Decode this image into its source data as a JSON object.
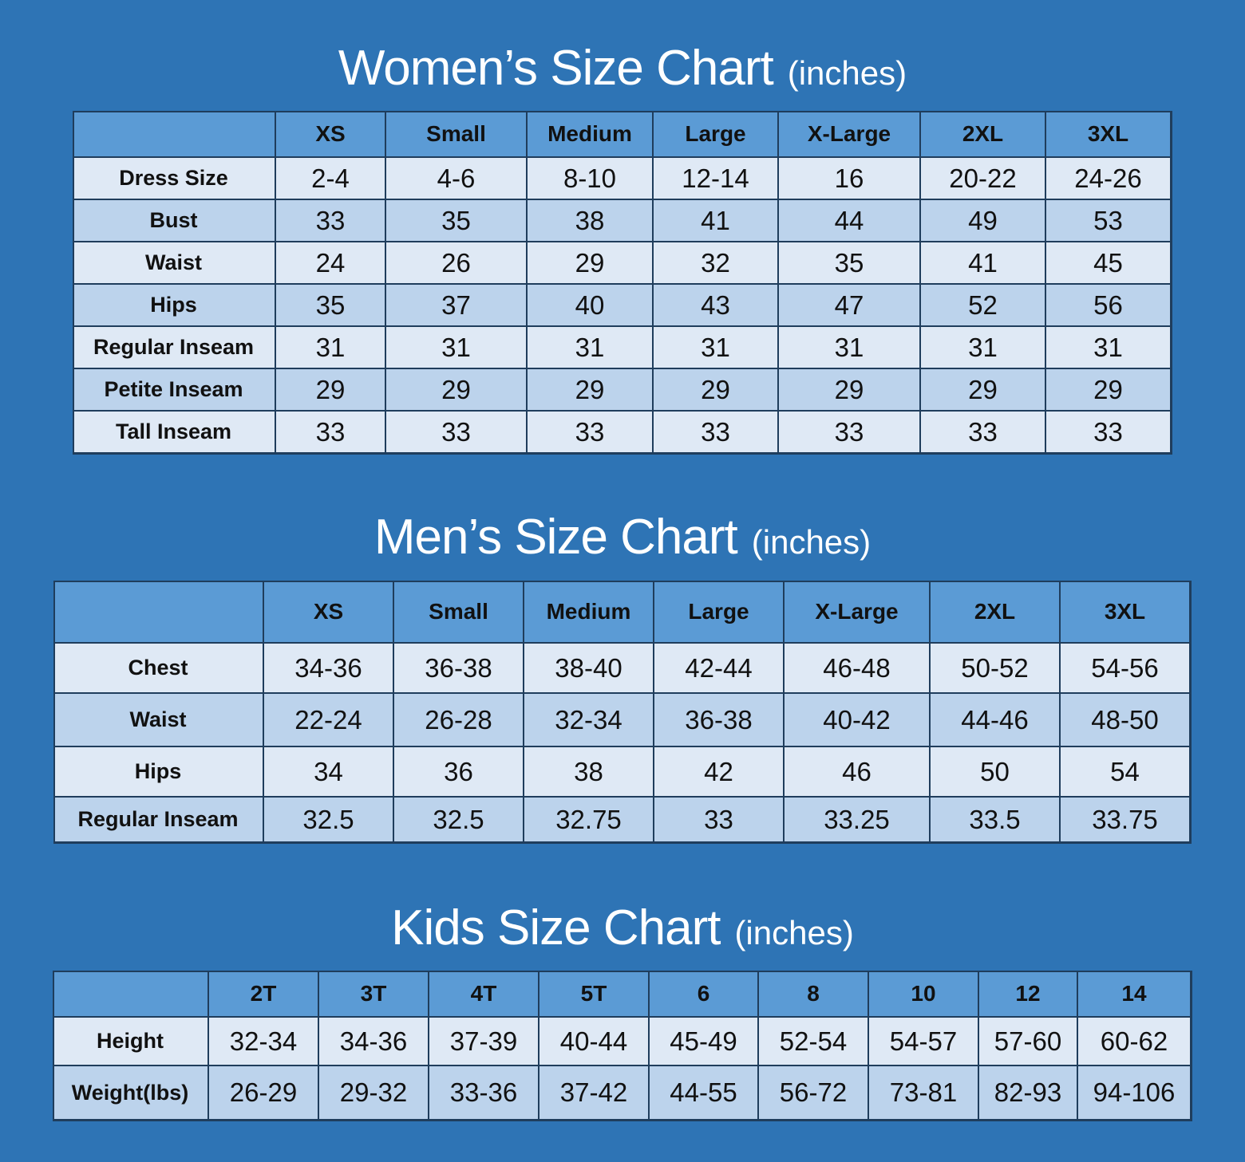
{
  "tables": [
    {
      "title": "Women’s Size Chart",
      "unit": "(inches)",
      "columns": [
        "XS",
        "Small",
        "Medium",
        "Large",
        "X-Large",
        "2XL",
        "3XL"
      ],
      "rows": [
        {
          "label": "Dress Size",
          "cells": [
            "2-4",
            "4-6",
            "8-10",
            "12-14",
            16,
            "20-22",
            "24-26"
          ]
        },
        {
          "label": "Bust",
          "cells": [
            33,
            35,
            38,
            41,
            44,
            49,
            53
          ]
        },
        {
          "label": "Waist",
          "cells": [
            24,
            26,
            29,
            32,
            35,
            41,
            45
          ]
        },
        {
          "label": "Hips",
          "cells": [
            35,
            37,
            40,
            43,
            47,
            52,
            56
          ]
        },
        {
          "label": "Regular Inseam",
          "cells": [
            31,
            31,
            31,
            31,
            31,
            31,
            31
          ]
        },
        {
          "label": "Petite Inseam",
          "cells": [
            29,
            29,
            29,
            29,
            29,
            29,
            29
          ]
        },
        {
          "label": "Tall Inseam",
          "cells": [
            33,
            33,
            33,
            33,
            33,
            33,
            33
          ]
        }
      ]
    },
    {
      "title": "Men’s Size Chart",
      "unit": "(inches)",
      "columns": [
        "XS",
        "Small",
        "Medium",
        "Large",
        "X-Large",
        "2XL",
        "3XL"
      ],
      "rows": [
        {
          "label": "Chest",
          "cells": [
            "34-36",
            "36-38",
            "38-40",
            "42-44",
            "46-48",
            "50-52",
            "54-56"
          ]
        },
        {
          "label": "Waist",
          "cells": [
            "22-24",
            "26-28",
            "32-34",
            "36-38",
            "40-42",
            "44-46",
            "48-50"
          ]
        },
        {
          "label": "Hips",
          "cells": [
            34,
            36,
            38,
            42,
            46,
            50,
            54
          ]
        },
        {
          "label": "Regular Inseam",
          "cells": [
            32.5,
            32.5,
            32.75,
            33,
            33.25,
            33.5,
            33.75
          ]
        }
      ]
    },
    {
      "title": "Kids Size Chart",
      "unit": "(inches)",
      "columns": [
        "2T",
        "3T",
        "4T",
        "5T",
        6,
        8,
        10,
        12,
        14
      ],
      "rows": [
        {
          "label": "Height",
          "cells": [
            "32-34",
            "34-36",
            "37-39",
            "40-44",
            "45-49",
            "52-54",
            "54-57",
            "57-60",
            "60-62"
          ]
        },
        {
          "label": "Weight(lbs)",
          "cells": [
            "26-29",
            "29-32",
            "33-36",
            "37-42",
            "44-55",
            "56-72",
            "73-81",
            "82-93",
            "94-106"
          ]
        }
      ]
    }
  ]
}
